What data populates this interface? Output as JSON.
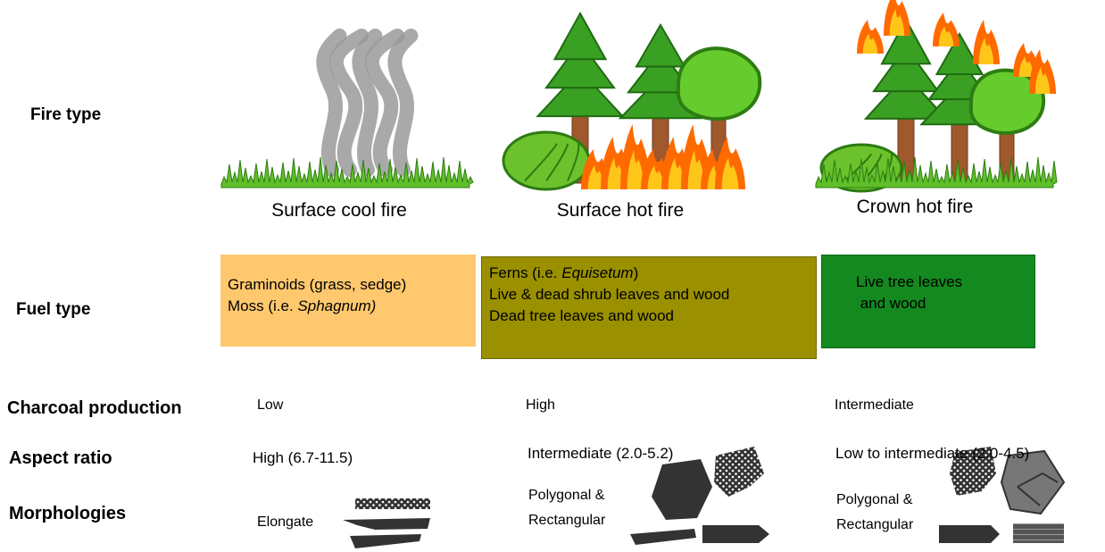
{
  "rows": {
    "fire_type": "Fire type",
    "fuel_type": "Fuel type",
    "charcoal_production": "Charcoal production",
    "aspect_ratio": "Aspect ratio",
    "morphologies": "Morphologies"
  },
  "columns": [
    {
      "fire_type": "Surface cool fire",
      "fuel_type": {
        "color": "#ffc86e",
        "lines": [
          [
            {
              "text": "Graminoids (grass, sedge)"
            }
          ],
          [
            {
              "text": "Moss (i.e. "
            },
            {
              "text": "Sphagnum)",
              "italic": true
            }
          ]
        ]
      },
      "charcoal_production": "Low",
      "aspect_ratio": "High (6.7-11.5)",
      "morphologies": [
        "Elongate"
      ]
    },
    {
      "fire_type": "Surface hot fire",
      "fuel_type": {
        "color": "#9a9000",
        "lines": [
          [
            {
              "text": "Ferns (i.e. "
            },
            {
              "text": "Equisetum",
              "italic": true
            },
            {
              "text": ")"
            }
          ],
          [
            {
              "text": "Live & dead shrub leaves and wood"
            }
          ],
          [
            {
              "text": "Dead tree leaves and wood"
            }
          ]
        ]
      },
      "charcoal_production": "High",
      "aspect_ratio": "Intermediate (2.0-5.2)",
      "morphologies": [
        "Polygonal &",
        "Rectangular"
      ]
    },
    {
      "fire_type": "Crown hot fire",
      "fuel_type": {
        "color": "#14891f",
        "lines": [
          [
            {
              "text": "Live tree leaves"
            }
          ],
          [
            {
              "text": " and wood"
            }
          ]
        ]
      },
      "charcoal_production": "Intermediate",
      "aspect_ratio": "Low to intermediate (2.0-4.5)",
      "morphologies": [
        "Polygonal &",
        "Rectangular"
      ]
    }
  ]
}
